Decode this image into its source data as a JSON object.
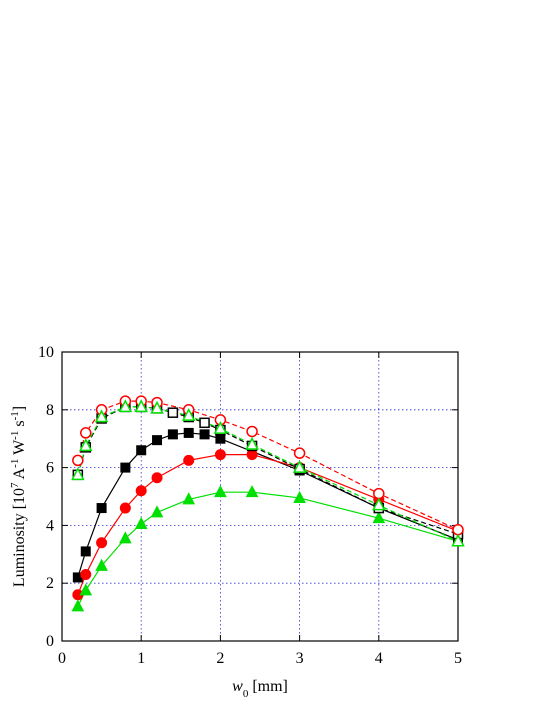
{
  "chart_data": {
    "type": "line",
    "x_label": [
      "w",
      "0",
      " [mm]"
    ],
    "y_label": [
      "Luminosity  [10",
      "7",
      " A",
      "-1",
      " W",
      "-1",
      " s",
      "-1",
      "]"
    ],
    "xlim": [
      0,
      5
    ],
    "xticks": [
      0,
      1,
      2,
      3,
      4,
      5
    ],
    "ylim": [
      0,
      10
    ],
    "yticks": [
      0,
      2,
      4,
      6,
      8,
      10
    ],
    "grid": true,
    "grid_color": "#3333cc",
    "series": [
      {
        "color": "#000000",
        "marker": "square",
        "filled": true,
        "dashed": false,
        "x": [
          0.2,
          0.3,
          0.5,
          0.8,
          1.0,
          1.2,
          1.4,
          1.6,
          1.8,
          2.0,
          3.0,
          4.0,
          5.0
        ],
        "values": [
          2.2,
          3.1,
          4.6,
          6.0,
          6.6,
          6.95,
          7.15,
          7.2,
          7.15,
          7.0,
          5.9,
          4.6,
          3.5
        ]
      },
      {
        "color": "#ff0000",
        "marker": "circle",
        "filled": true,
        "dashed": false,
        "x": [
          0.2,
          0.3,
          0.5,
          0.8,
          1.0,
          1.2,
          1.6,
          2.0,
          2.4,
          3.0,
          4.0,
          5.0
        ],
        "values": [
          1.6,
          2.3,
          3.4,
          4.6,
          5.2,
          5.65,
          6.25,
          6.45,
          6.45,
          6.0,
          4.9,
          3.8
        ]
      },
      {
        "color": "#00e000",
        "marker": "triangle",
        "filled": true,
        "dashed": false,
        "x": [
          0.2,
          0.3,
          0.5,
          0.8,
          1.0,
          1.2,
          1.6,
          2.0,
          2.4,
          3.0,
          4.0,
          5.0
        ],
        "values": [
          1.2,
          1.75,
          2.6,
          3.55,
          4.05,
          4.45,
          4.9,
          5.15,
          5.15,
          4.95,
          4.25,
          3.45
        ]
      },
      {
        "color": "#000000",
        "marker": "square",
        "filled": false,
        "dashed": true,
        "x": [
          0.2,
          0.3,
          0.5,
          0.8,
          1.0,
          1.2,
          1.4,
          1.6,
          1.8,
          2.0,
          2.4,
          3.0,
          4.0,
          5.0
        ],
        "values": [
          5.75,
          6.7,
          7.7,
          8.1,
          8.1,
          8.05,
          7.9,
          7.75,
          7.55,
          7.3,
          6.75,
          5.95,
          4.6,
          3.7
        ]
      },
      {
        "color": "#ff0000",
        "marker": "circle",
        "filled": false,
        "dashed": true,
        "x": [
          0.2,
          0.3,
          0.5,
          0.8,
          1.0,
          1.2,
          1.6,
          2.0,
          2.4,
          3.0,
          4.0,
          5.0
        ],
        "values": [
          6.25,
          7.2,
          8.0,
          8.3,
          8.3,
          8.25,
          8.0,
          7.65,
          7.25,
          6.5,
          5.1,
          3.85
        ]
      },
      {
        "color": "#00e000",
        "marker": "triangle",
        "filled": false,
        "dashed": true,
        "x": [
          0.2,
          0.3,
          0.5,
          0.8,
          1.0,
          1.2,
          1.6,
          2.0,
          2.4,
          3.0,
          4.0,
          5.0
        ],
        "values": [
          5.75,
          6.75,
          7.75,
          8.1,
          8.1,
          8.05,
          7.8,
          7.35,
          6.8,
          6.0,
          4.7,
          3.45
        ]
      }
    ]
  }
}
